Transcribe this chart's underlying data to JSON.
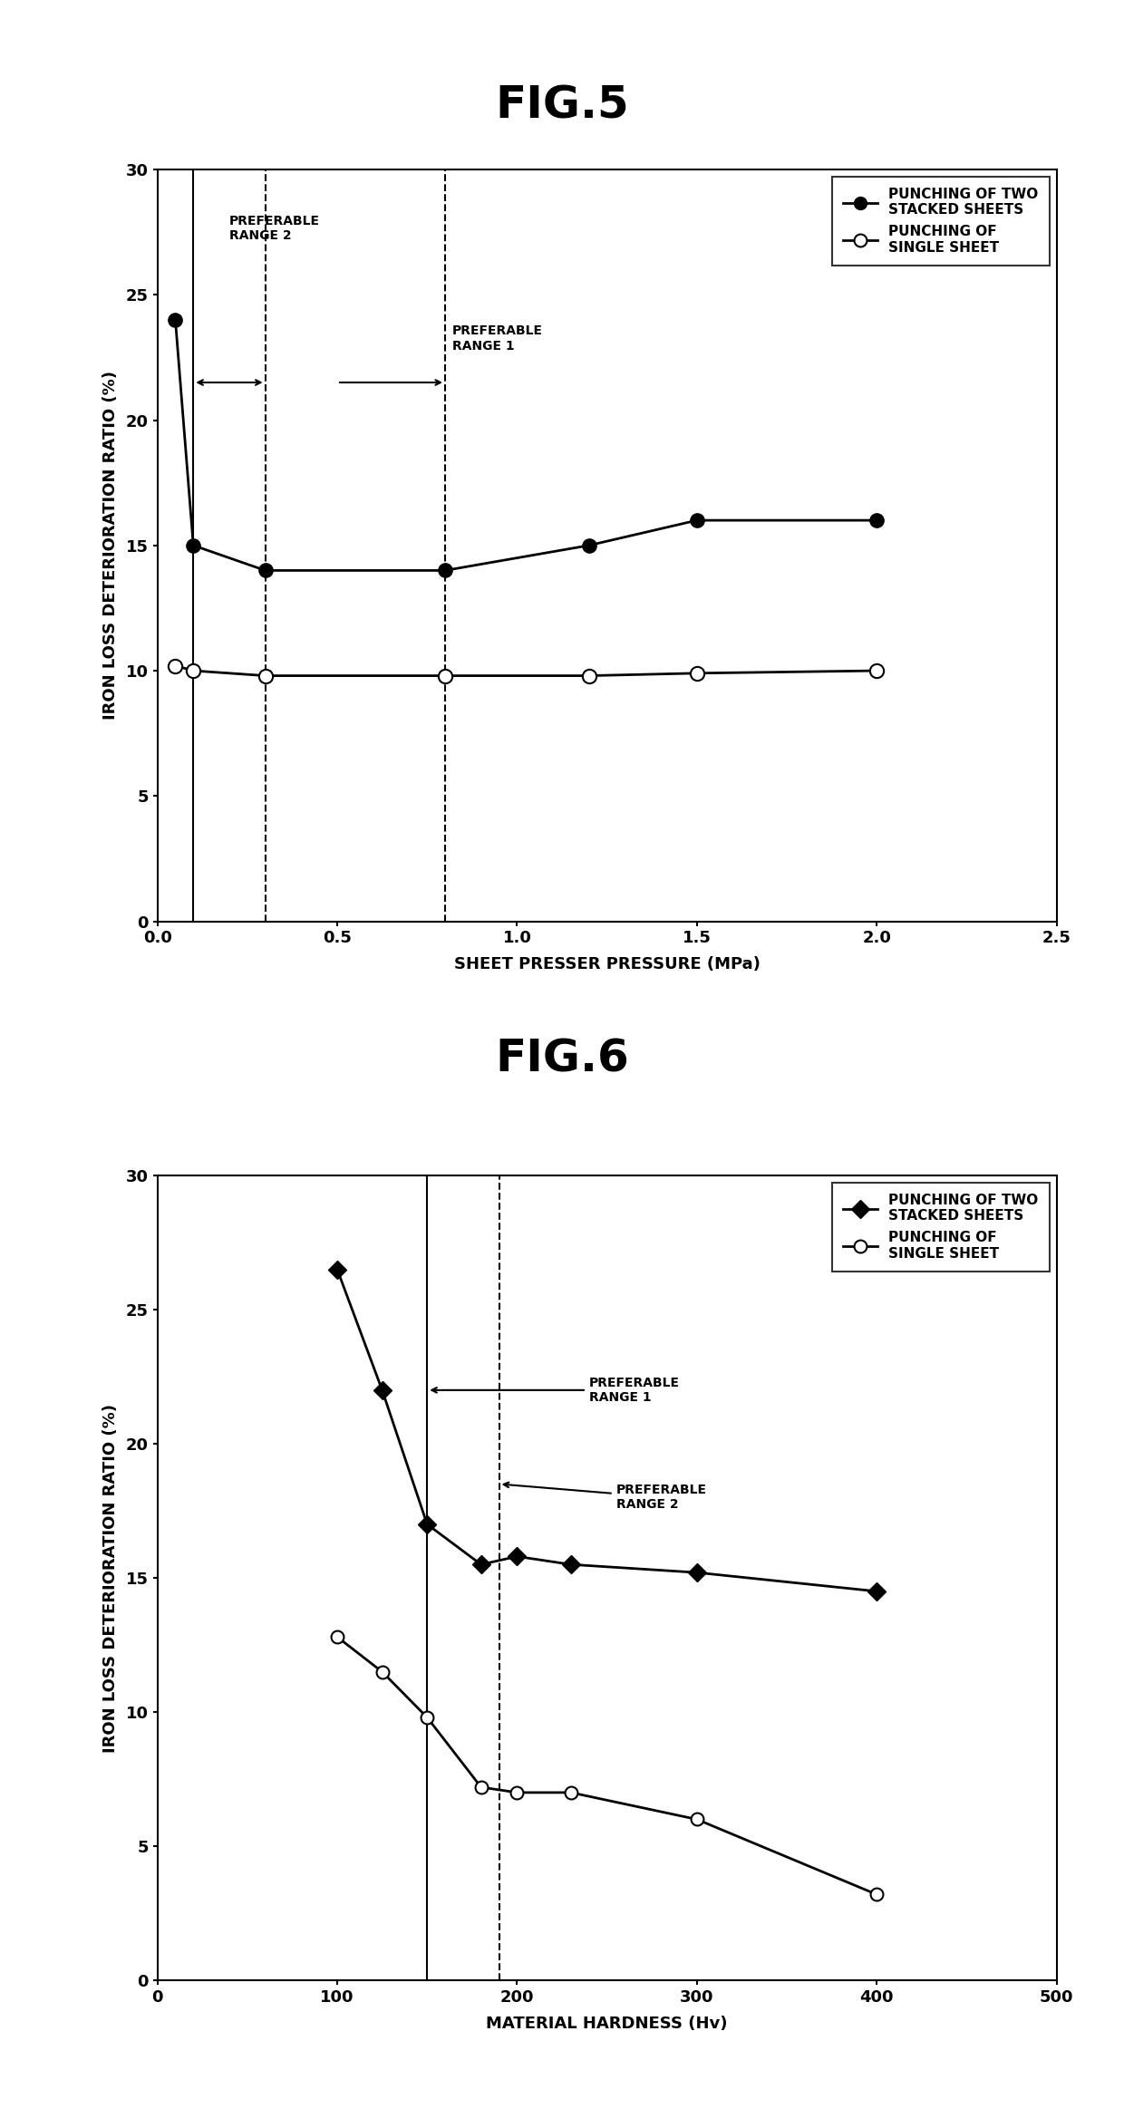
{
  "fig5": {
    "title": "FIG.5",
    "xlabel": "SHEET PRESSER PRESSURE (MPa)",
    "ylabel": "IRON LOSS DETERIORATION RATIO (%)",
    "xlim": [
      0,
      2.5
    ],
    "ylim": [
      0,
      30
    ],
    "xticks": [
      0.0,
      0.5,
      1.0,
      1.5,
      2.0,
      2.5
    ],
    "yticks": [
      0,
      5,
      10,
      15,
      20,
      25,
      30
    ],
    "series1_x": [
      0.05,
      0.1,
      0.3,
      0.8,
      1.2,
      1.5,
      2.0
    ],
    "series1_y": [
      24,
      15,
      14.0,
      14.0,
      15.0,
      16.0,
      16.0
    ],
    "series2_x": [
      0.05,
      0.1,
      0.3,
      0.8,
      1.2,
      1.5,
      2.0
    ],
    "series2_y": [
      10.2,
      10.0,
      9.8,
      9.8,
      9.8,
      9.9,
      10.0
    ],
    "vline_solid_x": 0.1,
    "vline_dashed1_x": 0.3,
    "vline_dashed2_x": 0.8,
    "legend1": "PUNCHING OF TWO\nSTACKED SHEETS",
    "legend2": "PUNCHING OF\nSINGLE SHEET"
  },
  "fig6": {
    "title": "FIG.6",
    "xlabel": "MATERIAL HARDNESS (Hv)",
    "ylabel": "IRON LOSS DETERIORATION RATIO (%)",
    "xlim": [
      0,
      500
    ],
    "ylim": [
      0,
      30
    ],
    "xticks": [
      0,
      100,
      200,
      300,
      400,
      500
    ],
    "yticks": [
      0,
      5,
      10,
      15,
      20,
      25,
      30
    ],
    "series1_x": [
      100,
      125,
      150,
      180,
      200,
      230,
      300,
      400
    ],
    "series1_y": [
      26.5,
      22.0,
      17.0,
      15.5,
      15.8,
      15.5,
      15.2,
      14.5
    ],
    "series2_x": [
      100,
      125,
      150,
      180,
      200,
      230,
      300,
      400
    ],
    "series2_y": [
      12.8,
      11.5,
      9.8,
      7.2,
      7.0,
      7.0,
      6.0,
      3.2
    ],
    "vline_solid_x": 150,
    "vline_dashed_x": 190,
    "legend1": "PUNCHING OF TWO\nSTACKED SHEETS",
    "legend2": "PUNCHING OF\nSINGLE SHEET"
  }
}
